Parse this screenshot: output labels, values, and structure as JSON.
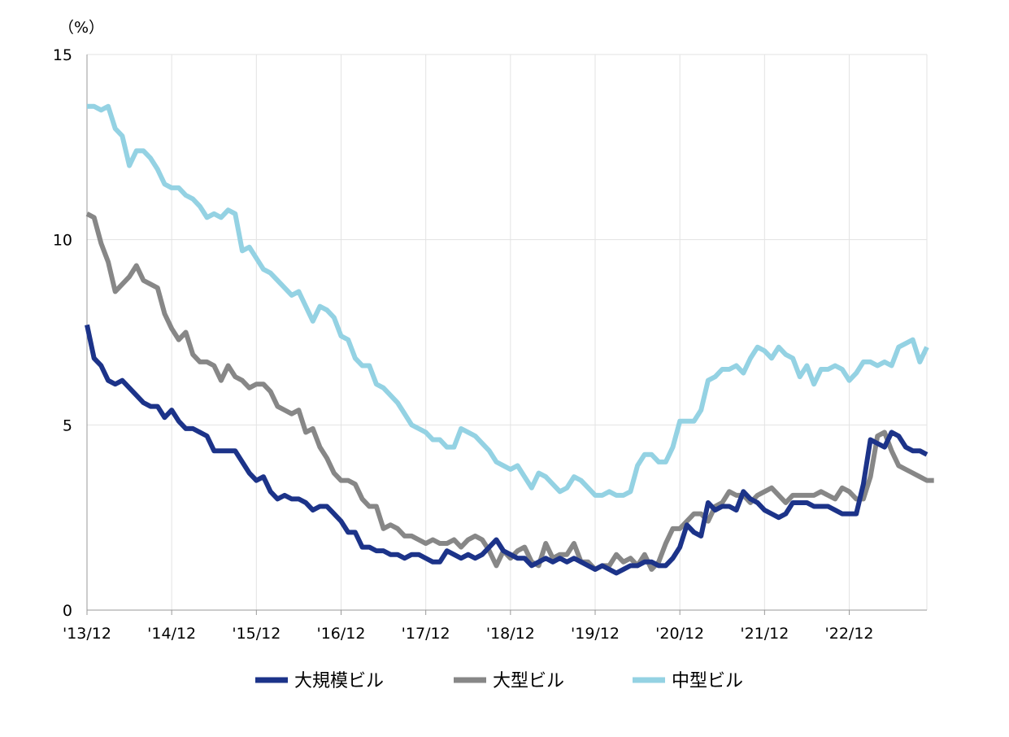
{
  "chart_data": {
    "type": "line",
    "unit_label": "（%）",
    "ylim": [
      0,
      15
    ],
    "y_ticks": [
      "0",
      "5",
      "10",
      "15"
    ],
    "x_ticks": [
      "'13/12",
      "'14/12",
      "'15/12",
      "'16/12",
      "'17/12",
      "'18/12",
      "'19/12",
      "'20/12",
      "'21/12",
      "'22/12"
    ],
    "grid": true,
    "legend_position": "bottom",
    "series": [
      {
        "name": "大規模ビル",
        "color": "#1c3389",
        "values": [
          7.7,
          6.8,
          6.6,
          6.2,
          6.1,
          6.2,
          6.0,
          5.8,
          5.6,
          5.5,
          5.5,
          5.2,
          5.4,
          5.1,
          4.9,
          4.9,
          4.8,
          4.7,
          4.3,
          4.3,
          4.3,
          4.3,
          4.0,
          3.7,
          3.5,
          3.6,
          3.2,
          3.0,
          3.1,
          3.0,
          3.0,
          2.9,
          2.7,
          2.8,
          2.8,
          2.6,
          2.4,
          2.1,
          2.1,
          1.7,
          1.7,
          1.6,
          1.6,
          1.5,
          1.5,
          1.4,
          1.5,
          1.5,
          1.4,
          1.3,
          1.3,
          1.6,
          1.5,
          1.4,
          1.5,
          1.4,
          1.5,
          1.7,
          1.9,
          1.6,
          1.5,
          1.4,
          1.4,
          1.2,
          1.3,
          1.4,
          1.3,
          1.4,
          1.3,
          1.4,
          1.3,
          1.2,
          1.1,
          1.2,
          1.1,
          1.0,
          1.1,
          1.2,
          1.2,
          1.3,
          1.3,
          1.2,
          1.2,
          1.4,
          1.7,
          2.3,
          2.1,
          2.0,
          2.9,
          2.7,
          2.8,
          2.8,
          2.7,
          3.2,
          3.0,
          2.9,
          2.7,
          2.6,
          2.5,
          2.6,
          2.9,
          2.9,
          2.9,
          2.8,
          2.8,
          2.8,
          2.7,
          2.6,
          2.6,
          2.6,
          3.4,
          4.6,
          4.5,
          4.4,
          4.8,
          4.7,
          4.4,
          4.3,
          4.3,
          4.2
        ]
      },
      {
        "name": "大型ビル",
        "color": "#878787",
        "values": [
          10.7,
          10.6,
          9.9,
          9.4,
          8.6,
          8.8,
          9.0,
          9.3,
          8.9,
          8.8,
          8.7,
          8.0,
          7.6,
          7.3,
          7.5,
          6.9,
          6.7,
          6.7,
          6.6,
          6.2,
          6.6,
          6.3,
          6.2,
          6.0,
          6.1,
          6.1,
          5.9,
          5.5,
          5.4,
          5.3,
          5.4,
          4.8,
          4.9,
          4.4,
          4.1,
          3.7,
          3.5,
          3.5,
          3.4,
          3.0,
          2.8,
          2.8,
          2.2,
          2.3,
          2.2,
          2.0,
          2.0,
          1.9,
          1.8,
          1.9,
          1.8,
          1.8,
          1.9,
          1.7,
          1.9,
          2.0,
          1.9,
          1.6,
          1.2,
          1.6,
          1.4,
          1.6,
          1.7,
          1.3,
          1.2,
          1.8,
          1.4,
          1.5,
          1.5,
          1.8,
          1.3,
          1.3,
          1.1,
          1.2,
          1.2,
          1.5,
          1.3,
          1.4,
          1.2,
          1.5,
          1.1,
          1.3,
          1.8,
          2.2,
          2.2,
          2.4,
          2.6,
          2.6,
          2.4,
          2.8,
          2.9,
          3.2,
          3.1,
          3.1,
          2.9,
          3.1,
          3.2,
          3.3,
          3.1,
          2.9,
          3.1,
          3.1,
          3.1,
          3.1,
          3.2,
          3.1,
          3.0,
          3.3,
          3.2,
          3.0,
          3.0,
          3.6,
          4.7,
          4.8,
          4.3,
          3.9,
          3.8,
          3.7,
          3.6,
          3.5,
          3.5
        ]
      },
      {
        "name": "中型ビル",
        "color": "#94d2e3",
        "values": [
          13.6,
          13.6,
          13.5,
          13.6,
          13.0,
          12.8,
          12.0,
          12.4,
          12.4,
          12.2,
          11.9,
          11.5,
          11.4,
          11.4,
          11.2,
          11.1,
          10.9,
          10.6,
          10.7,
          10.6,
          10.8,
          10.7,
          9.7,
          9.8,
          9.5,
          9.2,
          9.1,
          8.9,
          8.7,
          8.5,
          8.6,
          8.2,
          7.8,
          8.2,
          8.1,
          7.9,
          7.4,
          7.3,
          6.8,
          6.6,
          6.6,
          6.1,
          6.0,
          5.8,
          5.6,
          5.3,
          5.0,
          4.9,
          4.8,
          4.6,
          4.6,
          4.4,
          4.4,
          4.9,
          4.8,
          4.7,
          4.5,
          4.3,
          4.0,
          3.9,
          3.8,
          3.9,
          3.6,
          3.3,
          3.7,
          3.6,
          3.4,
          3.2,
          3.3,
          3.6,
          3.5,
          3.3,
          3.1,
          3.1,
          3.2,
          3.1,
          3.1,
          3.2,
          3.9,
          4.2,
          4.2,
          4.0,
          4.0,
          4.4,
          5.1,
          5.1,
          5.1,
          5.4,
          6.2,
          6.3,
          6.5,
          6.5,
          6.6,
          6.4,
          6.8,
          7.1,
          7.0,
          6.8,
          7.1,
          6.9,
          6.8,
          6.3,
          6.6,
          6.1,
          6.5,
          6.5,
          6.6,
          6.5,
          6.2,
          6.4,
          6.7,
          6.7,
          6.6,
          6.7,
          6.6,
          7.1,
          7.2,
          7.3,
          6.7,
          7.1
        ]
      }
    ]
  }
}
